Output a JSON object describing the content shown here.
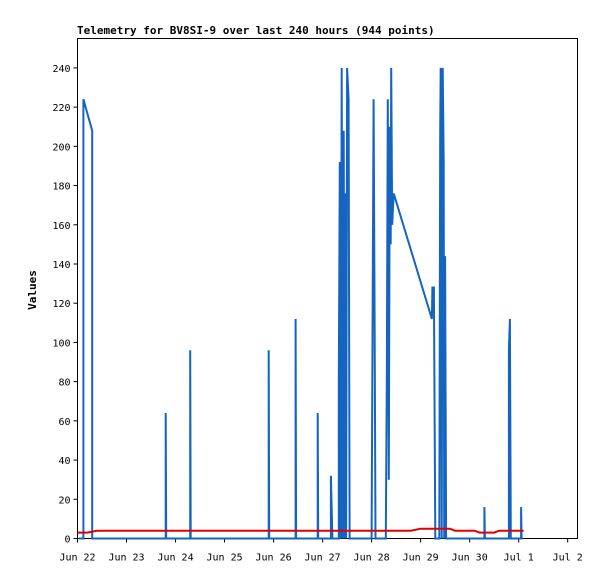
{
  "chart_data": {
    "type": "line",
    "title": "Telemetry for BV8SI-9 over last 240 hours (944 points)",
    "xlabel": "",
    "ylabel": "Values",
    "xlim": [
      0,
      10.2
    ],
    "ylim": [
      0,
      255
    ],
    "x_unit": "days since Jun 22 00:00",
    "xtick_labels": [
      "Jun 22",
      "Jun 23",
      "Jun 24",
      "Jun 25",
      "Jun 26",
      "Jun 27",
      "Jun 28",
      "Jun 29",
      "Jun 30",
      "Jul 1",
      "Jul 2"
    ],
    "ytick_values": [
      0,
      20,
      40,
      60,
      80,
      100,
      120,
      140,
      160,
      180,
      200,
      220,
      240
    ],
    "grid": false,
    "series": [
      {
        "color": "#1565c0",
        "points": [
          [
            0.03,
            0
          ],
          [
            0.12,
            0
          ],
          [
            0.12,
            224
          ],
          [
            0.3,
            208
          ],
          [
            0.3,
            0
          ],
          [
            1.8,
            0
          ],
          [
            1.8,
            64
          ],
          [
            1.81,
            0
          ],
          [
            2.3,
            0
          ],
          [
            2.3,
            96
          ],
          [
            2.31,
            0
          ],
          [
            3.9,
            0
          ],
          [
            3.9,
            96
          ],
          [
            3.91,
            0
          ],
          [
            4.45,
            0
          ],
          [
            4.45,
            112
          ],
          [
            4.46,
            0
          ],
          [
            4.9,
            0
          ],
          [
            4.9,
            64
          ],
          [
            4.91,
            0
          ],
          [
            5.17,
            0
          ],
          [
            5.17,
            32
          ],
          [
            5.2,
            0
          ],
          [
            5.33,
            0
          ],
          [
            5.33,
            80
          ],
          [
            5.35,
            192
          ],
          [
            5.37,
            0
          ],
          [
            5.39,
            240
          ],
          [
            5.41,
            0
          ],
          [
            5.43,
            208
          ],
          [
            5.45,
            0
          ],
          [
            5.47,
            176
          ],
          [
            5.48,
            0
          ],
          [
            5.5,
            240
          ],
          [
            5.53,
            224
          ],
          [
            5.55,
            0
          ],
          [
            6.0,
            0
          ],
          [
            6.04,
            224
          ],
          [
            6.06,
            112
          ],
          [
            6.08,
            0
          ],
          [
            6.29,
            0
          ],
          [
            6.31,
            80
          ],
          [
            6.33,
            224
          ],
          [
            6.35,
            30
          ],
          [
            6.37,
            210
          ],
          [
            6.39,
            150
          ],
          [
            6.4,
            240
          ],
          [
            6.42,
            160
          ],
          [
            6.45,
            176
          ],
          [
            7.23,
            112
          ],
          [
            7.24,
            128
          ],
          [
            7.27,
            128
          ],
          [
            7.3,
            0
          ],
          [
            7.38,
            0
          ],
          [
            7.4,
            208
          ],
          [
            7.41,
            240
          ],
          [
            7.43,
            0
          ],
          [
            7.45,
            240
          ],
          [
            7.47,
            192
          ],
          [
            7.48,
            0
          ],
          [
            7.5,
            144
          ],
          [
            7.52,
            0
          ],
          [
            8.3,
            0
          ],
          [
            8.3,
            16
          ],
          [
            8.31,
            0
          ],
          [
            8.8,
            0
          ],
          [
            8.8,
            96
          ],
          [
            8.82,
            112
          ],
          [
            8.84,
            0
          ],
          [
            9.05,
            0
          ],
          [
            9.05,
            16
          ],
          [
            9.06,
            0
          ]
        ]
      },
      {
        "color": "#e00000",
        "points": [
          [
            0.0,
            3
          ],
          [
            0.2,
            3
          ],
          [
            0.4,
            4
          ],
          [
            6.8,
            4
          ],
          [
            7.0,
            5
          ],
          [
            7.6,
            5
          ],
          [
            7.7,
            4
          ],
          [
            8.1,
            4
          ],
          [
            8.2,
            3
          ],
          [
            8.5,
            3
          ],
          [
            8.6,
            4
          ],
          [
            9.1,
            4
          ]
        ]
      }
    ]
  }
}
